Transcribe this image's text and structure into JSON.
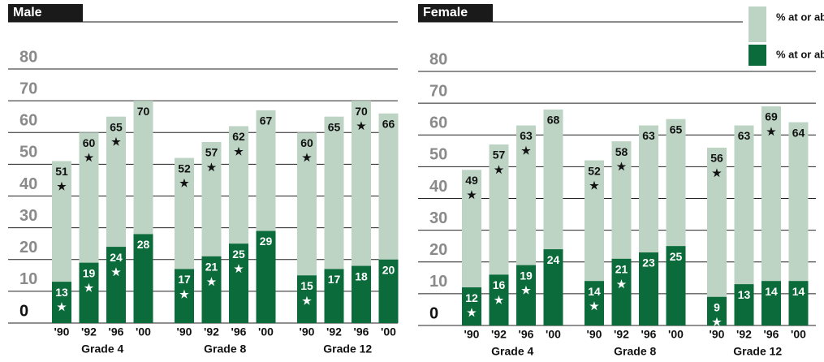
{
  "chart_data": [
    {
      "type": "bar",
      "title": "Male",
      "categories": [
        "'90",
        "'92",
        "'96",
        "'00",
        "'90",
        "'92",
        "'96",
        "'00",
        "'90",
        "'92",
        "'96",
        "'00"
      ],
      "groups": [
        "Grade 4",
        "Grade 8",
        "Grade 12"
      ],
      "ylim": [
        0,
        80
      ],
      "yticks": [
        0,
        10,
        20,
        30,
        40,
        50,
        60,
        70,
        80
      ],
      "grid": true,
      "series": [
        {
          "color": "#bdd4c5",
          "values": [
            51,
            60,
            65,
            70,
            52,
            57,
            62,
            67,
            60,
            65,
            70,
            66
          ],
          "markers": [
            "★",
            "★",
            "★",
            null,
            "★",
            "★",
            "★",
            null,
            "★",
            null,
            "★",
            null
          ]
        },
        {
          "color": "#0b6b3a",
          "values": [
            13,
            19,
            24,
            28,
            17,
            21,
            25,
            29,
            15,
            17,
            18,
            20
          ],
          "markers": [
            "★",
            "★",
            "★",
            null,
            "★",
            "★",
            "★",
            null,
            "★",
            null,
            null,
            null
          ]
        }
      ]
    },
    {
      "type": "bar",
      "title": "Female",
      "categories": [
        "'90",
        "'92",
        "'96",
        "'00",
        "'90",
        "'92",
        "'96",
        "'00",
        "'90",
        "'92",
        "'96",
        "'00"
      ],
      "groups": [
        "Grade 4",
        "Grade 8",
        "Grade 12"
      ],
      "ylim": [
        0,
        80
      ],
      "yticks": [
        0,
        10,
        20,
        30,
        40,
        50,
        60,
        70,
        80
      ],
      "grid": true,
      "legend": "top-right",
      "series": [
        {
          "name": "% at or above Basic",
          "color": "#bdd4c5",
          "values": [
            49,
            57,
            63,
            68,
            52,
            58,
            63,
            65,
            56,
            63,
            69,
            64
          ],
          "markers": [
            "★",
            "★",
            "★",
            null,
            "★",
            "★",
            null,
            null,
            "★",
            null,
            "★",
            null
          ]
        },
        {
          "name": "% at or above Proficient",
          "color": "#0b6b3a",
          "values": [
            12,
            16,
            19,
            24,
            14,
            21,
            23,
            25,
            9,
            13,
            14,
            14
          ],
          "markers": [
            "★",
            "★",
            "★",
            null,
            "★",
            "★",
            null,
            null,
            "★",
            null,
            null,
            null
          ]
        }
      ]
    }
  ]
}
